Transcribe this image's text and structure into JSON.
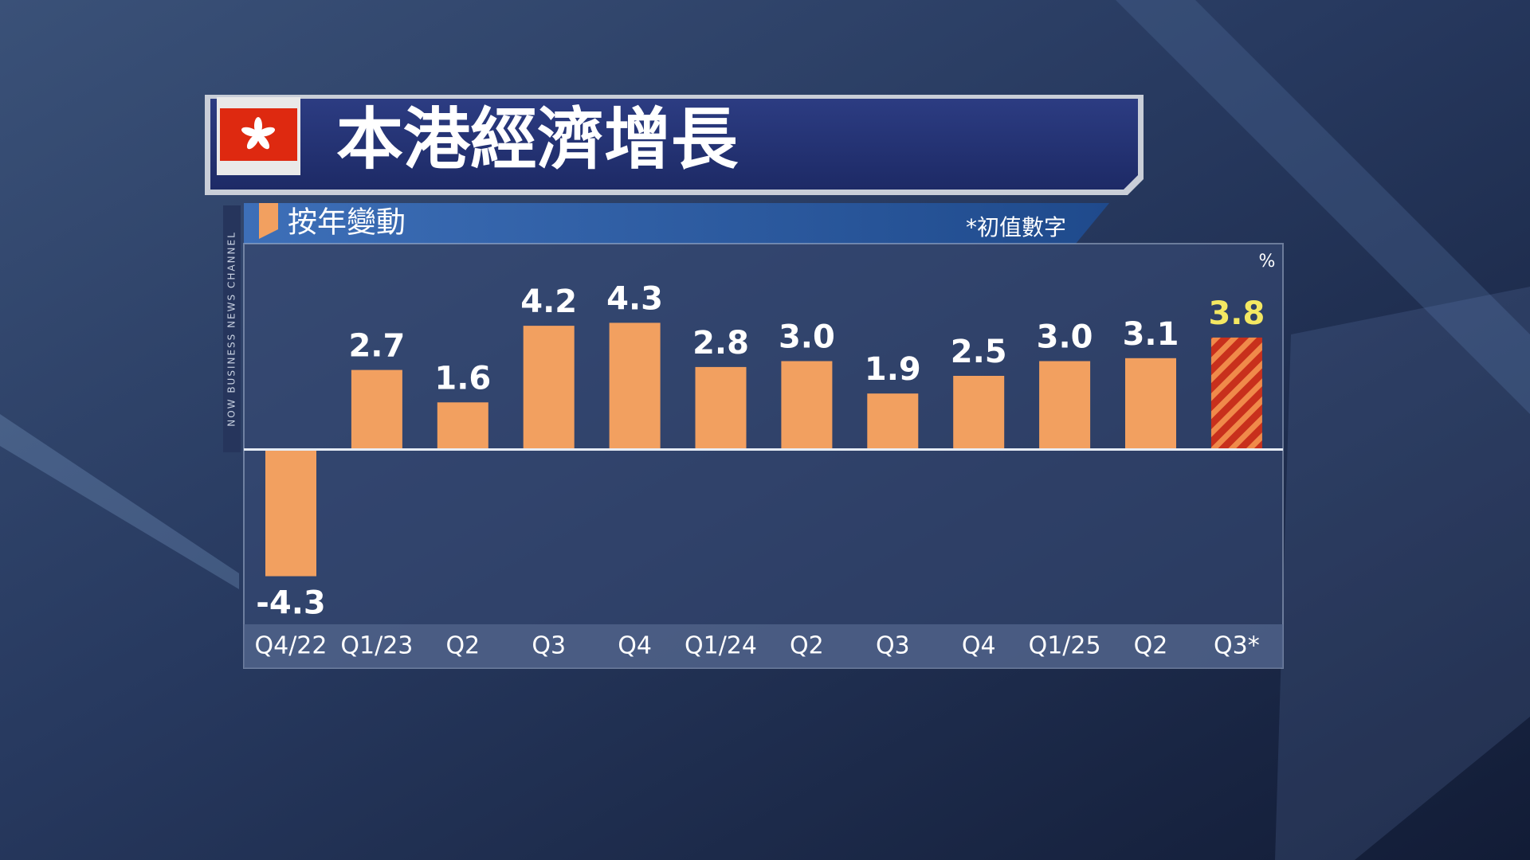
{
  "chart_data": {
    "type": "bar",
    "title": "本港經濟增長",
    "subtitle": "按年變動",
    "note": "*初值數字",
    "unit": "%",
    "channel": "NOW BUSINESS NEWS CHANNEL",
    "categories": [
      "Q4/22",
      "Q1/23",
      "Q2",
      "Q3",
      "Q4",
      "Q1/24",
      "Q2",
      "Q3",
      "Q4",
      "Q1/25",
      "Q2",
      "Q3*"
    ],
    "values": [
      -4.3,
      2.7,
      1.6,
      4.2,
      4.3,
      2.8,
      3.0,
      1.9,
      2.5,
      3.0,
      3.1,
      3.8
    ],
    "value_labels": [
      "-4.3",
      "2.7",
      "1.6",
      "4.2",
      "4.3",
      "2.8",
      "3.0",
      "1.9",
      "2.5",
      "3.0",
      "3.1",
      "3.8"
    ],
    "colors": [
      "#f2a060",
      "#f2a060",
      "#f2a060",
      "#f2a060",
      "#f2a060",
      "#f2a060",
      "#f2a060",
      "#f2a060",
      "#f2a060",
      "#f2a060",
      "#f2a060",
      "#c8301c"
    ],
    "hatch": [
      false,
      false,
      false,
      false,
      false,
      false,
      false,
      false,
      false,
      false,
      false,
      true
    ],
    "stripe_color": "#f08a4a",
    "label_colors": [
      "#ffffff",
      "#ffffff",
      "#ffffff",
      "#ffffff",
      "#ffffff",
      "#ffffff",
      "#ffffff",
      "#ffffff",
      "#ffffff",
      "#ffffff",
      "#ffffff",
      "#f4e862"
    ],
    "ylim": [
      -6,
      7
    ]
  }
}
